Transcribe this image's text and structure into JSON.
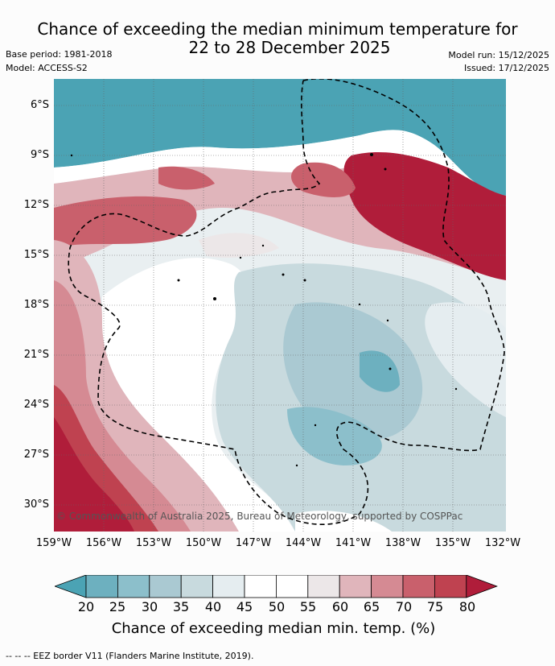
{
  "title": {
    "line1": "Chance of exceeding the median minimum temperature for",
    "line2": "22 to 28 December 2025"
  },
  "meta": {
    "base_period": "Base period: 1981-2018",
    "model": "Model: ACCESS-S2",
    "model_run": "Model run: 15/12/2025",
    "issued": "Issued: 17/12/2025"
  },
  "map": {
    "lat_labels": [
      "6°S",
      "9°S",
      "12°S",
      "15°S",
      "18°S",
      "21°S",
      "24°S",
      "27°S",
      "30°S"
    ],
    "lon_labels": [
      "159°W",
      "156°W",
      "153°W",
      "150°W",
      "147°W",
      "144°W",
      "141°W",
      "138°W",
      "135°W",
      "132°W"
    ],
    "copyright": "© Commonwealth of Australia 2025, Bureau of Meteorology, supported by COSPPac"
  },
  "colorbar": {
    "labels": [
      "20",
      "25",
      "30",
      "35",
      "40",
      "45",
      "50",
      "55",
      "60",
      "65",
      "70",
      "75",
      "80"
    ],
    "colors": [
      "#4ba3b4",
      "#6db0bf",
      "#8cbfcb",
      "#aac9d2",
      "#c8dade",
      "#e5edf0",
      "#ffffff",
      "#ffffff",
      "#ece7e8",
      "#e0b5bb",
      "#d58a93",
      "#c9606c",
      "#bf4250",
      "#b01d3a"
    ],
    "title": "Chance of exceeding median min. temp. (%)"
  },
  "legend_note": "--  --  -- EEZ border V11 (Flanders Marine Institute, 2019)."
}
